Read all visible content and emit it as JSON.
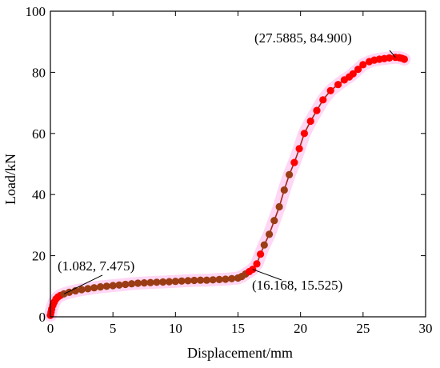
{
  "chart_data": {
    "type": "line",
    "xlabel": "Displacement/mm",
    "ylabel": "Load/kN",
    "xlim": [
      0,
      30
    ],
    "ylim": [
      0,
      100
    ],
    "xticks": [
      0,
      5,
      10,
      15,
      20,
      25,
      30
    ],
    "yticks": [
      0,
      20,
      40,
      60,
      80,
      100
    ],
    "grid": false,
    "legend": "none",
    "colors": {
      "line": "#a0281e",
      "marker": "#ff0000",
      "marker_dark": "#9a3c14",
      "highlight": "#ffc8f0"
    },
    "series": [
      {
        "x": [
          0.0,
          0.05,
          0.1,
          0.2,
          0.3,
          0.45,
          0.6,
          0.8,
          1.082,
          1.5,
          2.0,
          2.5,
          3.0,
          3.5,
          4.0,
          4.5,
          5.0,
          5.5,
          6.0,
          6.5,
          7.0,
          7.5,
          8.0,
          8.5,
          9.0,
          9.5,
          10.0,
          10.5,
          11.0,
          11.5,
          12.0,
          12.5,
          13.0,
          13.5,
          14.0,
          14.5,
          15.0,
          15.3,
          15.6,
          15.9,
          16.168,
          16.5,
          16.8,
          17.1,
          17.5,
          17.9,
          18.3,
          18.7,
          19.1,
          19.5,
          19.9,
          20.3,
          20.8,
          21.3,
          21.8,
          22.4,
          23.0,
          23.5,
          23.9,
          24.2,
          24.6,
          25.0,
          25.5,
          25.9,
          26.3,
          26.7,
          27.1,
          27.5885,
          27.9,
          28.1,
          28.3
        ],
        "y": [
          0.5,
          1.5,
          2.5,
          3.8,
          4.8,
          5.8,
          6.5,
          7.0,
          7.475,
          8.0,
          8.5,
          8.9,
          9.2,
          9.5,
          9.8,
          10.0,
          10.2,
          10.4,
          10.6,
          10.8,
          11.0,
          11.1,
          11.2,
          11.3,
          11.4,
          11.5,
          11.6,
          11.7,
          11.8,
          11.9,
          12.0,
          12.0,
          12.1,
          12.2,
          12.3,
          12.5,
          12.7,
          13.2,
          14.0,
          14.8,
          15.525,
          17.3,
          20.5,
          23.5,
          27.0,
          31.5,
          36.0,
          41.5,
          46.5,
          50.5,
          55.0,
          60.0,
          64.0,
          67.5,
          71.0,
          74.0,
          76.0,
          77.5,
          78.5,
          79.5,
          81.0,
          82.5,
          83.5,
          84.0,
          84.3,
          84.5,
          84.7,
          84.9,
          84.8,
          84.6,
          84.3
        ]
      }
    ],
    "annotations": [
      {
        "text": "(27.5885, 84.900)",
        "x": 27.5885,
        "y": 84.9
      },
      {
        "text": "(1.082, 7.475)",
        "x": 1.082,
        "y": 7.475
      },
      {
        "text": "(16.168, 15.525)",
        "x": 16.168,
        "y": 15.525
      }
    ]
  }
}
